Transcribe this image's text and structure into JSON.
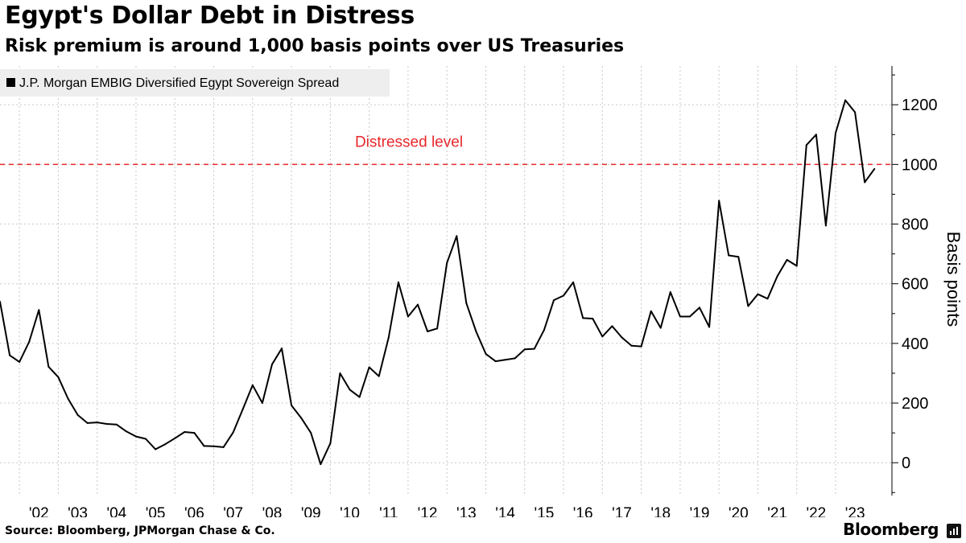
{
  "title": "Egypt's Dollar Debt in Distress",
  "subtitle": "Risk premium is around 1,000 basis points over US Treasuries",
  "source": "Source: Bloomberg, JPMorgan Chase & Co.",
  "brand": "Bloomberg",
  "colors": {
    "line": "#000000",
    "threshold": "#e8272b",
    "grid": "#c8c8c8",
    "legend_bg": "#eeeeee"
  },
  "chart_data": {
    "type": "line",
    "title": "Egypt's Dollar Debt in Distress",
    "ylabel": "Basis points",
    "xlabel": "",
    "ylim": [
      -110,
      1330
    ],
    "xlim": [
      2001.5,
      2024.45
    ],
    "yticks": [
      0,
      200,
      400,
      600,
      800,
      1000,
      1200
    ],
    "ytick_labels": [
      "0",
      "200",
      "400",
      "600",
      "800",
      "1000",
      "1200"
    ],
    "xtick_labels": [
      "'02",
      "'03",
      "'04",
      "'05",
      "'06",
      "'07",
      "'08",
      "'09",
      "'10",
      "'11",
      "'12",
      "'13",
      "'14",
      "'15",
      "'16",
      "'17",
      "'18",
      "'19",
      "'20",
      "'21",
      "'22",
      "'23"
    ],
    "legend": {
      "placement": "top-left",
      "entries": [
        "J.P. Morgan EMBIG Diversified Egypt Sovereign Spread"
      ]
    },
    "annotation": {
      "label": "Distressed level",
      "value": 1000,
      "style": "dashed"
    },
    "series": [
      {
        "name": "J.P. Morgan EMBIG Diversified Egypt Sovereign Spread",
        "x": [
          2001.5,
          2001.75,
          2002.0,
          2002.25,
          2002.5,
          2002.75,
          2003.0,
          2003.25,
          2003.5,
          2003.75,
          2004.0,
          2004.25,
          2004.5,
          2004.75,
          2005.0,
          2005.25,
          2005.5,
          2005.75,
          2006.0,
          2006.25,
          2006.5,
          2006.75,
          2007.0,
          2007.25,
          2007.5,
          2007.75,
          2008.0,
          2008.25,
          2008.5,
          2008.75,
          2009.0,
          2009.25,
          2009.5,
          2009.75,
          2010.0,
          2010.25,
          2010.5,
          2010.75,
          2011.0,
          2011.25,
          2011.5,
          2011.75,
          2012.0,
          2012.25,
          2012.5,
          2012.75,
          2013.0,
          2013.25,
          2013.5,
          2013.75,
          2014.0,
          2014.25,
          2014.5,
          2014.75,
          2015.0,
          2015.25,
          2015.5,
          2015.75,
          2016.0,
          2016.25,
          2016.5,
          2016.75,
          2017.0,
          2017.25,
          2017.5,
          2017.75,
          2018.0,
          2018.25,
          2018.5,
          2018.75,
          2019.0,
          2019.25,
          2019.5,
          2019.75,
          2020.0,
          2020.25,
          2020.5,
          2020.75,
          2021.0,
          2021.25,
          2021.5,
          2021.75,
          2022.0,
          2022.25,
          2022.5,
          2022.75,
          2023.0,
          2023.25,
          2023.5,
          2023.75,
          2024.0
        ],
        "values": [
          540,
          360,
          338,
          405,
          512,
          322,
          287,
          215,
          160,
          133,
          135,
          130,
          128,
          105,
          88,
          80,
          45,
          62,
          82,
          103,
          100,
          56,
          55,
          52,
          102,
          180,
          260,
          200,
          330,
          383,
          192,
          150,
          100,
          -5,
          65,
          300,
          245,
          220,
          320,
          290,
          420,
          605,
          490,
          530,
          440,
          450,
          670,
          760,
          535,
          440,
          365,
          340,
          345,
          350,
          380,
          382,
          445,
          545,
          560,
          605,
          485,
          483,
          423,
          458,
          420,
          392,
          390,
          508,
          452,
          572,
          490,
          490,
          520,
          455,
          878,
          695,
          690,
          525,
          565,
          550,
          625,
          680,
          660,
          1065,
          1100,
          795,
          1105,
          1215,
          1175,
          940,
          985
        ]
      }
    ]
  }
}
